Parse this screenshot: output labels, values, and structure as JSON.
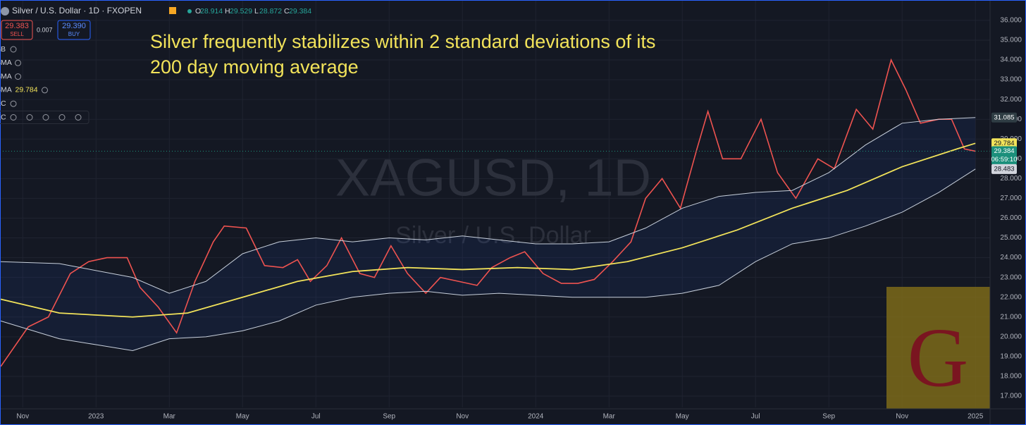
{
  "header": {
    "symbol": "Silver / U.S. Dollar · 1D · FXOPEN",
    "ohlc": [
      {
        "key": "O",
        "value": "28.914"
      },
      {
        "key": "H",
        "value": "29.529"
      },
      {
        "key": "L",
        "value": "28.872"
      },
      {
        "key": "C",
        "value": "29.384"
      }
    ],
    "sell": {
      "price": "29.383",
      "label": "SELL"
    },
    "spread": "0.007",
    "buy": {
      "price": "29.390",
      "label": "BUY"
    },
    "indicators": [
      {
        "name": "BB"
      },
      {
        "name": "SMA"
      },
      {
        "name": "SMA"
      },
      {
        "name": "SMA",
        "value": "29.784"
      },
      {
        "name": "KC"
      },
      {
        "name": "KC"
      }
    ]
  },
  "chart_data": {
    "type": "line",
    "annotation": [
      "Silver frequently stabilizes within 2 standard deviations of its",
      "200 day moving average"
    ],
    "watermark": {
      "symbol": "XAGUSD, 1D",
      "description": "Silver / U.S. Dollar"
    },
    "logo": "G",
    "xlim": [
      -0.62,
      26.4
    ],
    "xticks": [
      {
        "value": 0,
        "label": "Nov"
      },
      {
        "value": 2,
        "label": "2023"
      },
      {
        "value": 4,
        "label": "Mar"
      },
      {
        "value": 6,
        "label": "May"
      },
      {
        "value": 8,
        "label": "Jul"
      },
      {
        "value": 10,
        "label": "Sep"
      },
      {
        "value": 12,
        "label": "Nov"
      },
      {
        "value": 14,
        "label": "2024"
      },
      {
        "value": 16,
        "label": "Mar"
      },
      {
        "value": 18,
        "label": "May"
      },
      {
        "value": 20,
        "label": "Jul"
      },
      {
        "value": 22,
        "label": "Sep"
      },
      {
        "value": 24,
        "label": "Nov"
      },
      {
        "value": 26,
        "label": "2025"
      }
    ],
    "ylim": [
      16.43,
      37.03
    ],
    "yticks": [
      {
        "value": 17,
        "label": "17.000"
      },
      {
        "value": 18,
        "label": "18.000"
      },
      {
        "value": 19,
        "label": "19.000"
      },
      {
        "value": 20,
        "label": "20.000"
      },
      {
        "value": 21,
        "label": "21.000"
      },
      {
        "value": 22,
        "label": "22.000"
      },
      {
        "value": 23,
        "label": "23.000"
      },
      {
        "value": 24,
        "label": "24.000"
      },
      {
        "value": 25,
        "label": "25.000"
      },
      {
        "value": 26,
        "label": "26.000"
      },
      {
        "value": 27,
        "label": "27.000"
      },
      {
        "value": 28,
        "label": "28.000"
      },
      {
        "value": 29,
        "label": "29.000"
      },
      {
        "value": 30,
        "label": "30.000"
      },
      {
        "value": 31,
        "label": "31.000"
      },
      {
        "value": 32,
        "label": "32.000"
      },
      {
        "value": 33,
        "label": "33.000"
      },
      {
        "value": 34,
        "label": "34.000"
      },
      {
        "value": 35,
        "label": "35.000"
      },
      {
        "value": 36,
        "label": "36.000"
      }
    ],
    "grid": true,
    "series": [
      {
        "color": "#ef5350",
        "x": [
          -0.6,
          0.15,
          0.7,
          1.3,
          1.8,
          2.3,
          2.85,
          3.2,
          3.7,
          4.2,
          4.7,
          5.2,
          5.5,
          6.1,
          6.6,
          7.1,
          7.5,
          7.85,
          8.3,
          8.7,
          9.2,
          9.6,
          10.05,
          10.5,
          11.0,
          11.4,
          11.9,
          12.4,
          12.8,
          13.3,
          13.7,
          14.2,
          14.7,
          15.15,
          15.6,
          16.1,
          16.6,
          17.0,
          17.45,
          17.95,
          18.4,
          18.7,
          19.1,
          19.6,
          20.15,
          20.6,
          21.1,
          21.7,
          22.15,
          22.75,
          23.2,
          23.7,
          24.1,
          24.5,
          25.0,
          25.35,
          25.7,
          26.0
        ],
        "values": [
          18.5,
          20.5,
          21.0,
          23.2,
          23.8,
          24.0,
          24.0,
          22.5,
          21.5,
          20.2,
          22.8,
          24.8,
          25.6,
          25.5,
          23.6,
          23.5,
          23.9,
          22.8,
          23.6,
          25.0,
          23.2,
          23.0,
          24.6,
          23.2,
          22.2,
          23.0,
          22.8,
          22.6,
          23.5,
          24.0,
          24.3,
          23.2,
          22.7,
          22.7,
          22.9,
          23.8,
          24.8,
          27.0,
          28.0,
          26.5,
          29.5,
          31.4,
          29.0,
          29.0,
          31.0,
          28.3,
          27.0,
          29.0,
          28.5,
          31.5,
          30.5,
          34.0,
          32.5,
          30.8,
          31.0,
          31.0,
          29.5,
          29.384
        ]
      },
      {
        "color": "#f2e35a",
        "x": [
          -0.6,
          1,
          3,
          4.5,
          6,
          7.5,
          9,
          10.5,
          12,
          13.5,
          15,
          16.5,
          18,
          19.5,
          21,
          22.5,
          24,
          25.5,
          26
        ],
        "values": [
          21.9,
          21.2,
          21.0,
          21.2,
          22.0,
          22.8,
          23.3,
          23.5,
          23.4,
          23.5,
          23.4,
          23.8,
          24.5,
          25.4,
          26.5,
          27.4,
          28.6,
          29.5,
          29.784
        ]
      },
      {
        "color": "#c8d0dc",
        "x": [
          -0.6,
          1,
          3,
          4,
          5,
          6,
          7,
          8,
          9,
          10,
          11,
          12,
          13,
          14,
          15,
          16,
          17,
          18,
          19,
          20,
          21,
          22,
          23,
          24,
          25,
          26
        ],
        "values": [
          23.8,
          23.7,
          23.0,
          22.2,
          22.8,
          24.2,
          24.8,
          25.0,
          24.8,
          25.0,
          24.9,
          25.1,
          24.9,
          24.7,
          24.7,
          24.8,
          25.5,
          26.5,
          27.1,
          27.3,
          27.4,
          28.3,
          29.7,
          30.8,
          31.0,
          31.085
        ]
      },
      {
        "color": "#c8d0dc",
        "x": [
          -0.6,
          1,
          2,
          3,
          4,
          5,
          6,
          7,
          8,
          9,
          10,
          11,
          12,
          13,
          14,
          15,
          16,
          17,
          18,
          19,
          20,
          21,
          22,
          23,
          24,
          25,
          26
        ],
        "values": [
          20.8,
          19.9,
          19.6,
          19.3,
          19.9,
          20.0,
          20.3,
          20.8,
          21.6,
          22.0,
          22.2,
          22.3,
          22.1,
          22.2,
          22.1,
          22.0,
          22.0,
          22.0,
          22.2,
          22.6,
          23.8,
          24.7,
          25.0,
          25.6,
          26.3,
          27.3,
          28.483
        ]
      }
    ],
    "price_labels": [
      {
        "value": 31.085,
        "label": "31.085",
        "color": "#2f3d44"
      },
      {
        "value": 29.784,
        "label": "29.784",
        "color": "#f2e35a"
      },
      {
        "value": 29.384,
        "label": "29.384",
        "color": "#1b8f7b",
        "countdown": "06:59:10"
      },
      {
        "value": 28.483,
        "label": "28.483",
        "color": "#d1d4dc"
      }
    ]
  }
}
